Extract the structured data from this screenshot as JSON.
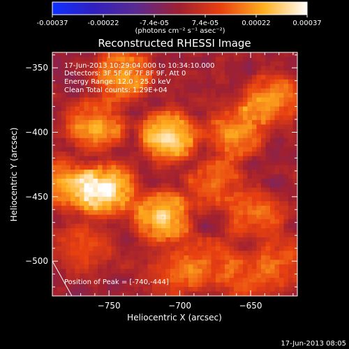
{
  "colorbar": {
    "ticks": [
      "-0.00037",
      "-0.00022",
      "-7.4e-05",
      "7.4e-05",
      "0.00022",
      "0.00037"
    ],
    "units": "(photons cm⁻² s⁻¹ asec⁻²)",
    "min": -0.00037,
    "max": 0.00037
  },
  "plot": {
    "title": "Reconstructed RHESSI Image",
    "info_lines": [
      "17-Jun-2013 10:29:04.000 to 10:34:10.000",
      "Detectors: 3F 5F 6F 7F 8F 9F, Att 0",
      "Energy Range: 12.0 - 25.0 keV",
      "Clean    Total counts: 1.29E+04"
    ],
    "peak_label": "Position of Peak = [-740,-444]",
    "footer_date": "17-Jun-2013 08:05"
  },
  "chart_data": {
    "type": "heatmap",
    "title": "Reconstructed RHESSI Image",
    "xlabel": "Heliocentric X (arcsec)",
    "ylabel": "Heliocentric Y (arcsec)",
    "xlim": [
      -790,
      -617
    ],
    "ylim": [
      -527,
      -338
    ],
    "x_ticks": [
      -750,
      -700,
      -650
    ],
    "y_ticks": [
      -350,
      -400,
      -450,
      -500
    ],
    "colormap": [
      "#1030ff",
      "#4020a0",
      "#6a2a8c",
      "#c02020",
      "#ff6a00",
      "#ffc020",
      "#ffffff"
    ],
    "peak": [
      -740,
      -444
    ],
    "sources": [
      {
        "x": -752,
        "y": -445,
        "peak": 0.00037
      },
      {
        "x": -708,
        "y": -403,
        "peak": 0.00033
      },
      {
        "x": -712,
        "y": -466,
        "peak": 0.00031
      },
      {
        "x": -760,
        "y": -395,
        "peak": 0.00026
      },
      {
        "x": -780,
        "y": -440,
        "peak": 0.00024
      },
      {
        "x": -740,
        "y": -355,
        "peak": 0.00024
      },
      {
        "x": -660,
        "y": -400,
        "peak": 0.00024
      },
      {
        "x": -635,
        "y": -375,
        "peak": 0.00022
      },
      {
        "x": -675,
        "y": -440,
        "peak": 0.00018
      },
      {
        "x": -645,
        "y": -465,
        "peak": 0.00018
      },
      {
        "x": -680,
        "y": -500,
        "peak": 0.00016
      },
      {
        "x": -650,
        "y": -515,
        "peak": 0.00016
      },
      {
        "x": -705,
        "y": -512,
        "peak": 0.00014
      },
      {
        "x": -770,
        "y": -490,
        "peak": 0.00013
      },
      {
        "x": -625,
        "y": -500,
        "peak": 0.00014
      }
    ]
  }
}
